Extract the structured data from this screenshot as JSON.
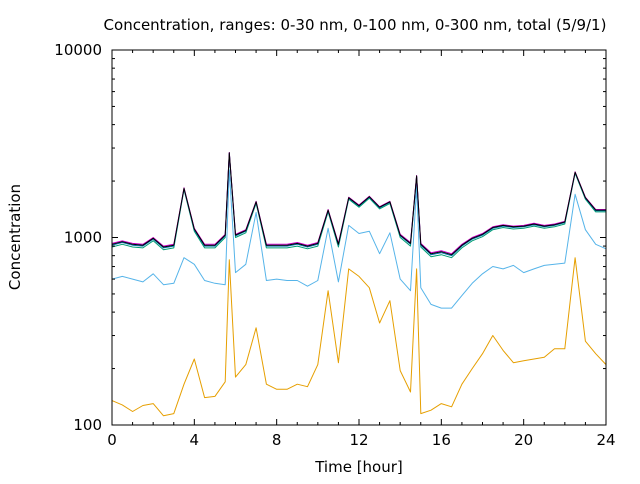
{
  "chart_data": {
    "type": "line",
    "title": "Concentration, ranges: 0-30 nm, 0-100 nm, 0-300 nm, total (5/9/1)",
    "xlabel": "Time [hour]",
    "ylabel": "Concentration",
    "xlim": [
      0,
      24
    ],
    "ylim": [
      100,
      10000
    ],
    "yscale": "log",
    "xticks": [
      0,
      4,
      8,
      12,
      16,
      20,
      24
    ],
    "yticks": [
      {
        "value": 100,
        "label": "100"
      },
      {
        "value": 1000,
        "label": "1000"
      },
      {
        "value": 10000,
        "label": "10000"
      }
    ],
    "grid": false,
    "legend": "none",
    "x": [
      0,
      0.5,
      1,
      1.5,
      2,
      2.5,
      3,
      3.5,
      4,
      4.5,
      5,
      5.5,
      5.7,
      6,
      6.5,
      7,
      7.5,
      8,
      8.5,
      9,
      9.5,
      10,
      10.5,
      11,
      11.5,
      12,
      12.5,
      13,
      13.5,
      14,
      14.5,
      14.8,
      15,
      15.5,
      16,
      16.5,
      17,
      17.5,
      18,
      18.5,
      19,
      19.5,
      20,
      20.5,
      21,
      21.5,
      22,
      22.5,
      23,
      23.5,
      24
    ],
    "series": [
      {
        "color": "#E69F00",
        "values": [
          135,
          128,
          118,
          127,
          130,
          112,
          115,
          165,
          225,
          140,
          142,
          170,
          760,
          180,
          210,
          330,
          165,
          155,
          155,
          165,
          160,
          210,
          520,
          215,
          680,
          620,
          540,
          350,
          460,
          195,
          150,
          680,
          115,
          120,
          130,
          125,
          165,
          200,
          240,
          300,
          250,
          215,
          220,
          225,
          230,
          255,
          255,
          780,
          280,
          240,
          210
        ]
      },
      {
        "color": "#56B4E9",
        "values": [
          600,
          620,
          600,
          580,
          640,
          560,
          570,
          780,
          720,
          590,
          570,
          560,
          2300,
          650,
          720,
          1360,
          590,
          600,
          590,
          590,
          550,
          590,
          1120,
          580,
          1160,
          1050,
          1080,
          820,
          1060,
          600,
          520,
          1860,
          540,
          440,
          420,
          420,
          490,
          570,
          640,
          700,
          680,
          710,
          650,
          680,
          710,
          720,
          730,
          1700,
          1100,
          920,
          870
        ]
      },
      {
        "color": "#009E73",
        "values": [
          890,
          920,
          890,
          880,
          960,
          860,
          880,
          1800,
          1080,
          880,
          880,
          1000,
          2800,
          1000,
          1060,
          1520,
          880,
          880,
          880,
          900,
          870,
          900,
          1370,
          890,
          1600,
          1450,
          1620,
          1420,
          1520,
          1000,
          900,
          2100,
          890,
          790,
          810,
          780,
          880,
          960,
          1010,
          1100,
          1130,
          1110,
          1120,
          1150,
          1120,
          1140,
          1180,
          2200,
          1600,
          1370,
          1370
        ]
      },
      {
        "color": "#0072B2",
        "values": [
          910,
          940,
          910,
          900,
          980,
          880,
          900,
          1820,
          1100,
          900,
          900,
          1020,
          2820,
          1020,
          1080,
          1540,
          900,
          900,
          900,
          920,
          890,
          920,
          1390,
          910,
          1620,
          1470,
          1640,
          1440,
          1540,
          1020,
          920,
          2120,
          910,
          810,
          830,
          800,
          900,
          980,
          1030,
          1120,
          1150,
          1130,
          1140,
          1170,
          1140,
          1160,
          1200,
          2220,
          1620,
          1390,
          1390
        ]
      },
      {
        "color": "#CC00CC",
        "values": [
          930,
          960,
          930,
          920,
          1000,
          900,
          920,
          1840,
          1120,
          920,
          920,
          1040,
          2840,
          1040,
          1100,
          1560,
          920,
          920,
          920,
          940,
          910,
          940,
          1410,
          930,
          1640,
          1490,
          1660,
          1460,
          1560,
          1040,
          940,
          2140,
          930,
          830,
          850,
          820,
          920,
          1000,
          1050,
          1140,
          1170,
          1150,
          1160,
          1190,
          1160,
          1180,
          1220,
          2240,
          1640,
          1410,
          1410
        ]
      },
      {
        "color": "#000000",
        "values": [
          920,
          950,
          920,
          910,
          990,
          890,
          910,
          1830,
          1110,
          910,
          910,
          1030,
          2830,
          1030,
          1090,
          1550,
          910,
          910,
          910,
          930,
          900,
          930,
          1400,
          920,
          1630,
          1480,
          1650,
          1450,
          1550,
          1030,
          930,
          2130,
          920,
          820,
          840,
          810,
          910,
          990,
          1040,
          1130,
          1160,
          1140,
          1150,
          1180,
          1150,
          1170,
          1210,
          2230,
          1630,
          1400,
          1400
        ]
      }
    ]
  }
}
